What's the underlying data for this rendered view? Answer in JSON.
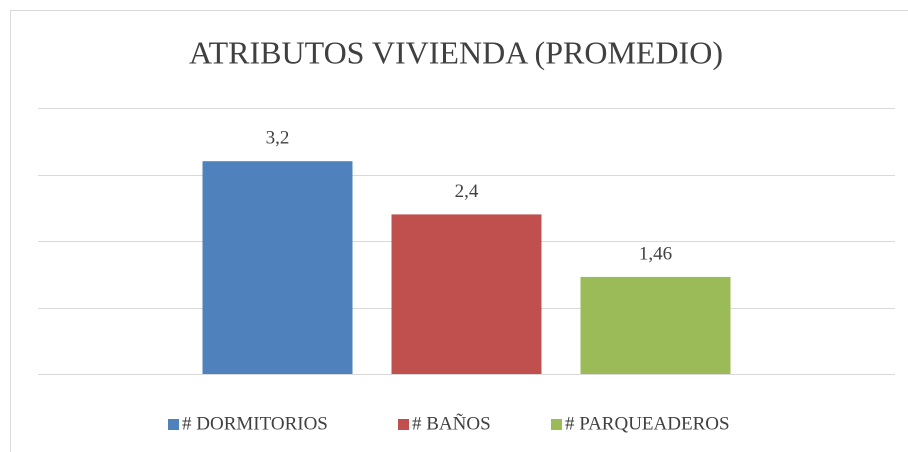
{
  "chart_data": {
    "type": "bar",
    "title": "ATRIBUTOS VIVIENDA (PROMEDIO)",
    "series": [
      {
        "name": "# DORMITORIOS",
        "color": "#4f81bd",
        "values": [
          3.2
        ],
        "value_labels": [
          "3,2"
        ]
      },
      {
        "name": "# BAÑOS",
        "color": "#c0504d",
        "values": [
          2.4
        ],
        "value_labels": [
          "2,4"
        ]
      },
      {
        "name": "# PARQUEADEROS",
        "color": "#9bbb59",
        "values": [
          1.46
        ],
        "value_labels": [
          "1,46"
        ]
      }
    ],
    "ylim": [
      0,
      4
    ],
    "yticks": [
      0,
      1,
      2,
      3,
      4
    ],
    "grid": true,
    "legend": "bottom"
  }
}
